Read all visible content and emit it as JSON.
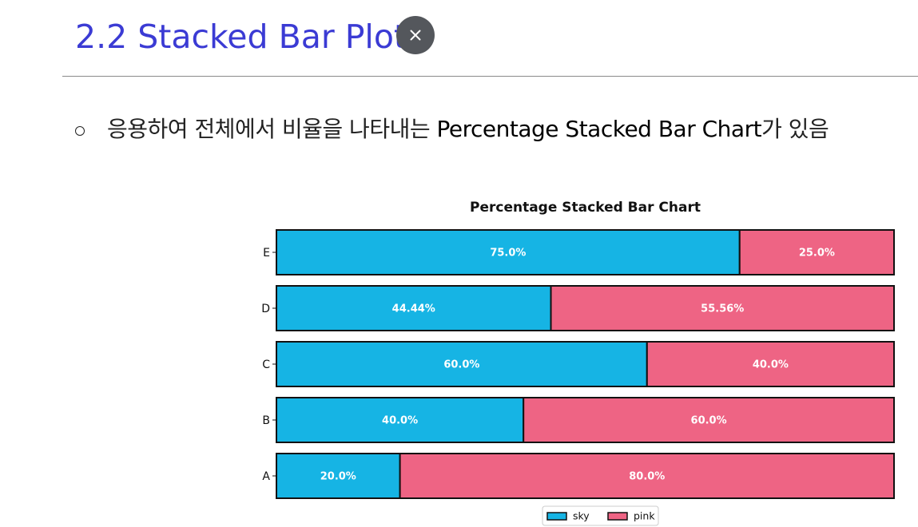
{
  "slide": {
    "title": "2.2 Stacked Bar Plot",
    "close_label": "×",
    "bullet_prefix": "응용하여 전체에서 비율을 나타내는 ",
    "bullet_highlight": "Percentage Stacked Bar Chart",
    "bullet_suffix": "가 있음",
    "title_color": "#3b3bd4"
  },
  "chart_data": {
    "type": "bar",
    "orientation": "horizontal",
    "stacked": true,
    "title": "Percentage Stacked Bar Chart",
    "categories": [
      "A",
      "B",
      "C",
      "D",
      "E"
    ],
    "series": [
      {
        "name": "sky",
        "color": "#16b4e4",
        "values": [
          20.0,
          40.0,
          60.0,
          44.44,
          75.0
        ],
        "labels": [
          "20.0%",
          "40.0%",
          "60.0%",
          "44.44%",
          "75.0%"
        ]
      },
      {
        "name": "pink",
        "color": "#ee6484",
        "values": [
          80.0,
          60.0,
          40.0,
          55.56,
          25.0
        ],
        "labels": [
          "80.0%",
          "60.0%",
          "40.0%",
          "55.56%",
          "25.0%"
        ]
      }
    ],
    "xlim": [
      0,
      100
    ],
    "xticks": "hidden",
    "grid": false,
    "legend": "bottom-center"
  }
}
